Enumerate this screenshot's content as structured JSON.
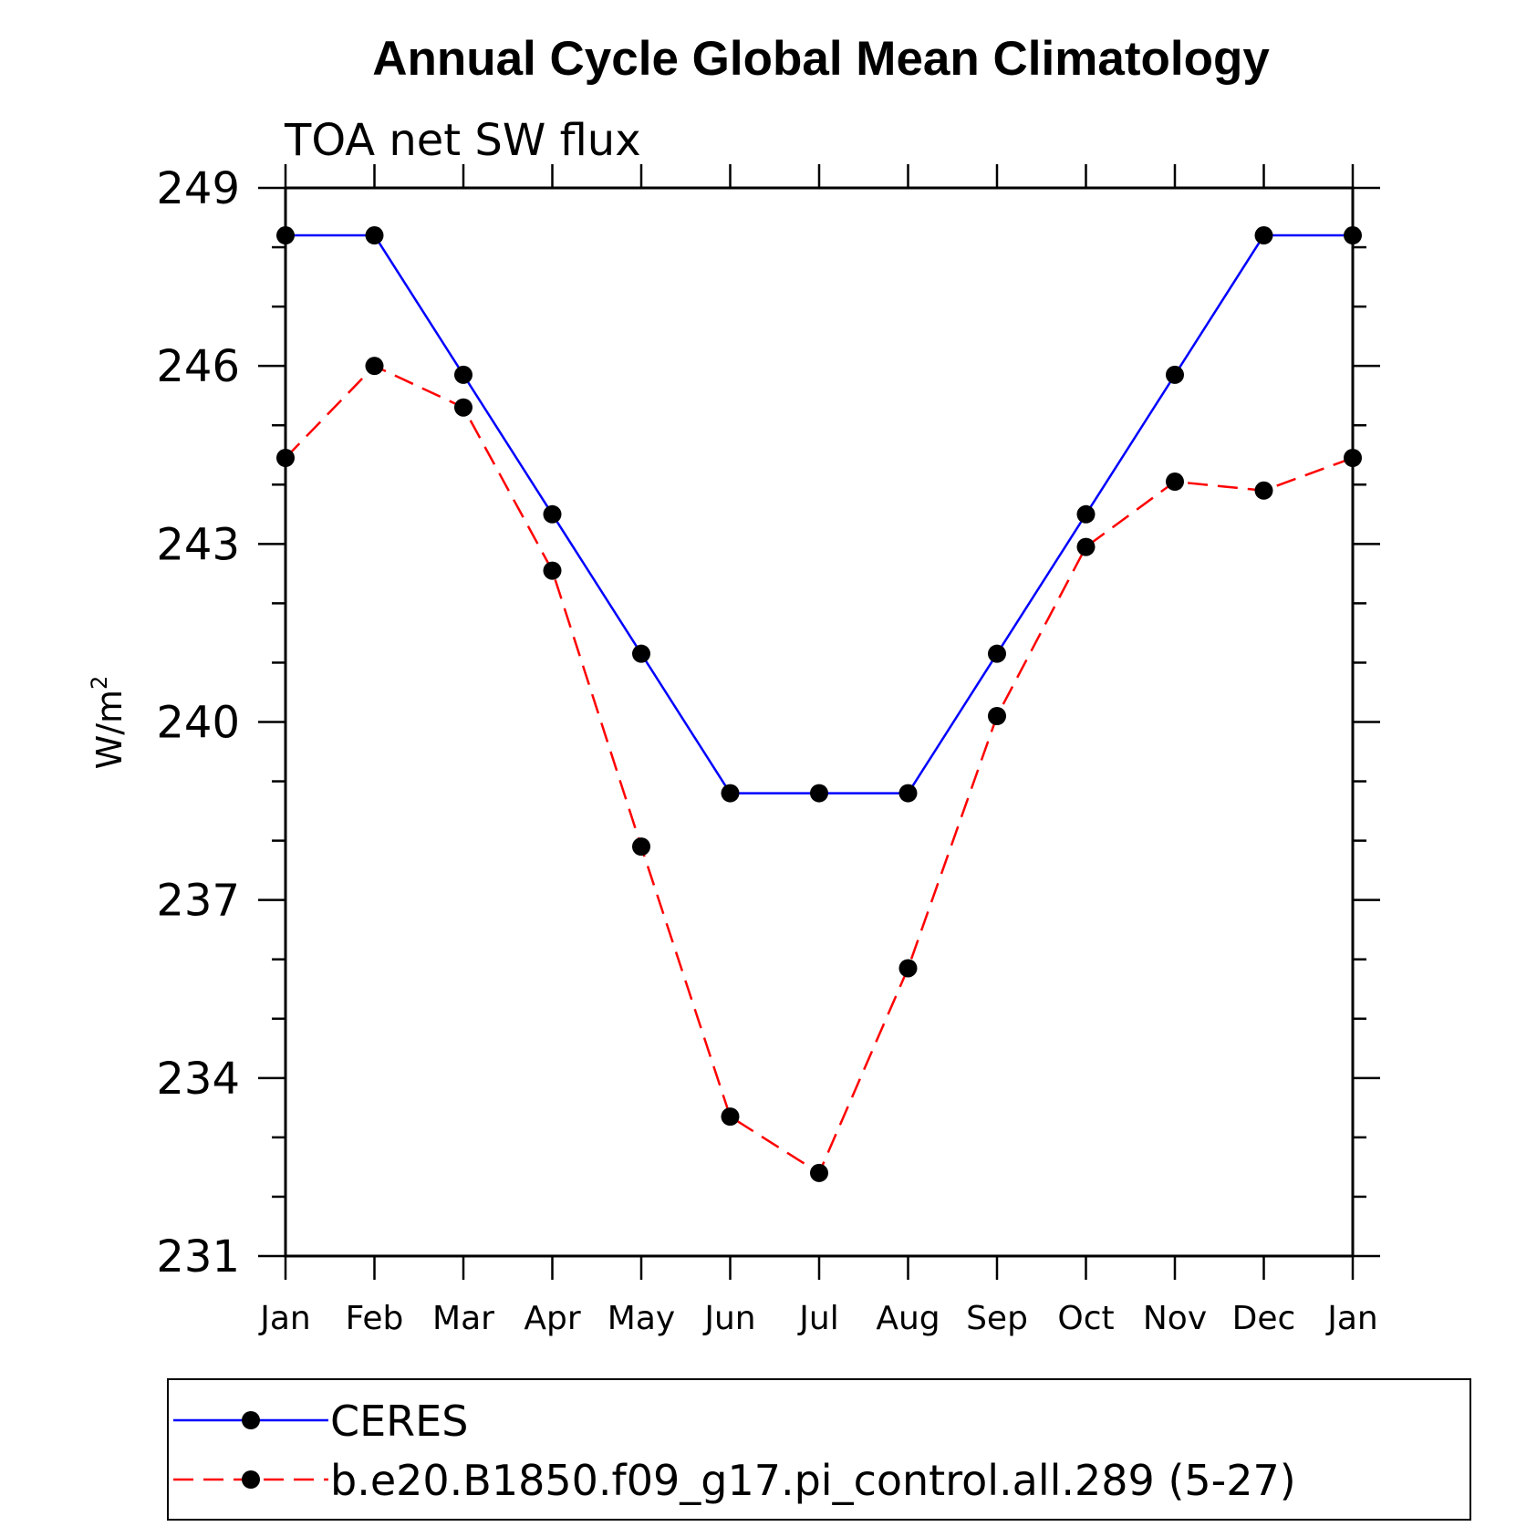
{
  "chart_data": {
    "type": "line",
    "title": "Annual Cycle Global Mean Climatology",
    "subtitle": "TOA net SW flux",
    "ylabel": "W/m",
    "ylabel_superscript": "2",
    "xlabel": "",
    "x": [
      "Jan",
      "Feb",
      "Mar",
      "Apr",
      "May",
      "Jun",
      "Jul",
      "Aug",
      "Sep",
      "Oct",
      "Nov",
      "Dec",
      "Jan"
    ],
    "ylim": [
      231,
      249
    ],
    "yticks": [
      231,
      234,
      237,
      240,
      243,
      246,
      249
    ],
    "y_minor_step": 1,
    "grid": false,
    "legend_position": "bottom",
    "series": [
      {
        "name": "CERES",
        "color": "#0000ff",
        "dash": "solid",
        "marker": "filled-circle",
        "values": [
          248.2,
          248.2,
          245.85,
          243.5,
          241.15,
          238.8,
          238.8,
          238.8,
          241.15,
          243.5,
          245.85,
          248.2,
          248.2
        ]
      },
      {
        "name": "b.e20.B1850.f09_g17.pi_control.all.289 (5-27)",
        "color": "#ff0000",
        "dash": "dashed",
        "marker": "filled-circle",
        "values": [
          244.45,
          246.0,
          245.3,
          242.55,
          237.9,
          233.35,
          232.4,
          235.85,
          240.1,
          242.95,
          244.05,
          243.9,
          244.45
        ]
      }
    ]
  }
}
